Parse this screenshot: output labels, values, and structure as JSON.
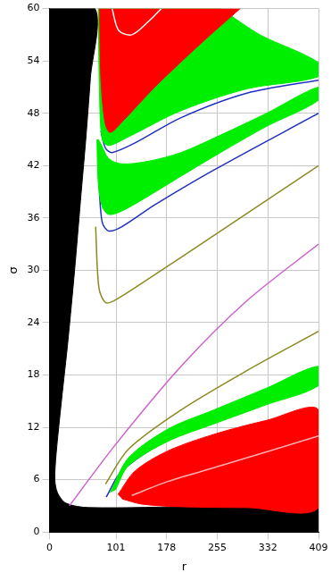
{
  "chart_data": {
    "type": "scatter",
    "x_label": "r",
    "y_label": "σ",
    "xlim": [
      0,
      409
    ],
    "xticks": [
      0,
      101,
      178,
      255,
      332,
      409
    ],
    "ylim": [
      0,
      60
    ],
    "yticks": [
      0,
      6,
      12,
      18,
      24,
      30,
      36,
      42,
      48,
      54,
      60
    ],
    "grid": true,
    "series": [
      {
        "type": "area",
        "color": "#000000",
        "x": [
          0,
          0,
          69,
          62,
          55,
          47,
          38,
          28,
          18,
          10,
          8,
          12,
          25,
          60,
          409,
          409
        ],
        "values": [
          0,
          60,
          60,
          52,
          45,
          38,
          30,
          22,
          15,
          9,
          6,
          4.5,
          3.3,
          2.8,
          2.7,
          0
        ]
      },
      {
        "type": "line",
        "color": "#d060d0",
        "x": [
          30,
          100,
          200,
          300,
          409
        ],
        "values": [
          3,
          10,
          19,
          26.5,
          33
        ]
      },
      {
        "type": "line",
        "color": "#8a8a20",
        "x": [
          70,
          75,
          85,
          100,
          150,
          250,
          409
        ],
        "values": [
          35,
          28,
          26.3,
          26.6,
          29,
          34,
          42
        ]
      },
      {
        "type": "line",
        "color": "#8a8a20",
        "x": [
          85,
          120,
          200,
          300,
          409
        ],
        "values": [
          5.5,
          9.5,
          14,
          18.5,
          23
        ]
      },
      {
        "type": "line",
        "color": "#2030c0",
        "x": [
          75,
          80,
          90,
          110,
          160,
          250,
          409
        ],
        "values": [
          40,
          35.5,
          34.5,
          35,
          37.5,
          41.5,
          48
        ]
      },
      {
        "type": "area",
        "color": "#00ee00",
        "x": [
          72,
          74,
          80,
          90,
          110,
          150,
          200,
          260,
          330,
          409,
          409,
          330,
          260,
          200,
          150,
          110,
          90,
          78,
          74
        ],
        "values": [
          45,
          40,
          37.3,
          36.4,
          36.8,
          38.5,
          40.8,
          43.5,
          46.5,
          49.5,
          51,
          48,
          45.5,
          43.5,
          42.5,
          42.2,
          42.8,
          44.5,
          45
        ]
      },
      {
        "type": "line",
        "color": "#2030c0",
        "x": [
          78,
          85,
          95,
          130,
          200,
          300,
          409
        ],
        "values": [
          46,
          44,
          43.5,
          44.6,
          47.5,
          50.3,
          51.8
        ]
      },
      {
        "type": "area",
        "color": "#00ee00",
        "x": [
          74,
          76,
          80,
          90,
          120,
          200,
          300,
          409,
          409,
          320,
          260
        ],
        "values": [
          60,
          50,
          45,
          44.3,
          45.3,
          48.3,
          50.8,
          52.2,
          53.8,
          57,
          60
        ]
      },
      {
        "type": "area",
        "color": "#ff0000",
        "x": [
          76,
          78,
          84,
          92,
          110,
          160,
          230,
          290
        ],
        "values": [
          60,
          52,
          47,
          45.8,
          47,
          51,
          56,
          60
        ]
      },
      {
        "type": "line",
        "color": "#ffffff",
        "x": [
          95,
          105,
          125,
          150,
          170
        ],
        "values": [
          60,
          57.5,
          57,
          58.5,
          60
        ]
      },
      {
        "type": "line",
        "color": "#2030c0",
        "x": [
          86,
          110,
          180,
          260,
          409
        ],
        "values": [
          4.0,
          7.0,
          10.6,
          13.2,
          16.8
        ]
      },
      {
        "type": "area",
        "color": "#00ee00",
        "x": [
          92,
          120,
          180,
          250,
          330,
          409,
          409,
          330,
          250,
          180,
          120,
          100
        ],
        "values": [
          4.5,
          8.5,
          11.8,
          14,
          16.5,
          19,
          16.8,
          14.6,
          12.4,
          10.4,
          7.6,
          4.8
        ]
      },
      {
        "type": "area",
        "color": "#ff0000",
        "x": [
          104,
          130,
          180,
          250,
          330,
          409,
          409,
          300,
          200,
          140,
          110
        ],
        "values": [
          4.3,
          7,
          9.3,
          11.2,
          12.8,
          14,
          2.8,
          2.8,
          2.9,
          3.2,
          3.8
        ]
      },
      {
        "type": "line",
        "color": "#ffb0b0",
        "x": [
          125,
          180,
          260,
          409
        ],
        "values": [
          4.2,
          5.8,
          7.6,
          11
        ]
      }
    ]
  }
}
